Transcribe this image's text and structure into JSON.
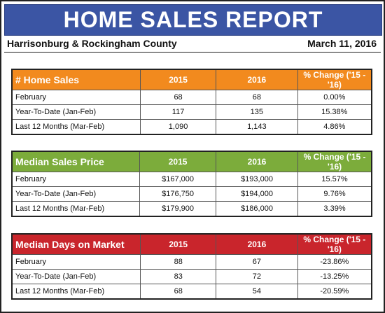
{
  "report": {
    "title": "HOME SALES REPORT",
    "location": "Harrisonburg & Rockingham County",
    "date": "March 11, 2016"
  },
  "tables": [
    {
      "header": "# Home Sales",
      "color": "#f28a1e",
      "columns": [
        "2015",
        "2016",
        "% Change ('15 - '16)"
      ],
      "rows": [
        {
          "label": "February",
          "v2015": "68",
          "v2016": "68",
          "change": "0.00%"
        },
        {
          "label": "Year-To-Date (Jan-Feb)",
          "v2015": "117",
          "v2016": "135",
          "change": "15.38%"
        },
        {
          "label": "Last 12 Months (Mar-Feb)",
          "v2015": "1,090",
          "v2016": "1,143",
          "change": "4.86%"
        }
      ]
    },
    {
      "header": "Median Sales Price",
      "color": "#7cac3b",
      "columns": [
        "2015",
        "2016",
        "% Change ('15 - '16)"
      ],
      "rows": [
        {
          "label": "February",
          "v2015": "$167,000",
          "v2016": "$193,000",
          "change": "15.57%"
        },
        {
          "label": "Year-To-Date (Jan-Feb)",
          "v2015": "$176,750",
          "v2016": "$194,000",
          "change": "9.76%"
        },
        {
          "label": "Last 12 Months (Mar-Feb)",
          "v2015": "$179,900",
          "v2016": "$186,000",
          "change": "3.39%"
        }
      ]
    },
    {
      "header": "Median Days on Market",
      "color": "#c9252c",
      "columns": [
        "2015",
        "2016",
        "% Change ('15 - '16)"
      ],
      "rows": [
        {
          "label": "February",
          "v2015": "88",
          "v2016": "67",
          "change": "-23.86%"
        },
        {
          "label": "Year-To-Date (Jan-Feb)",
          "v2015": "83",
          "v2016": "72",
          "change": "-13.25%"
        },
        {
          "label": "Last 12 Months (Mar-Feb)",
          "v2015": "68",
          "v2016": "54",
          "change": "-20.59%"
        }
      ]
    }
  ]
}
